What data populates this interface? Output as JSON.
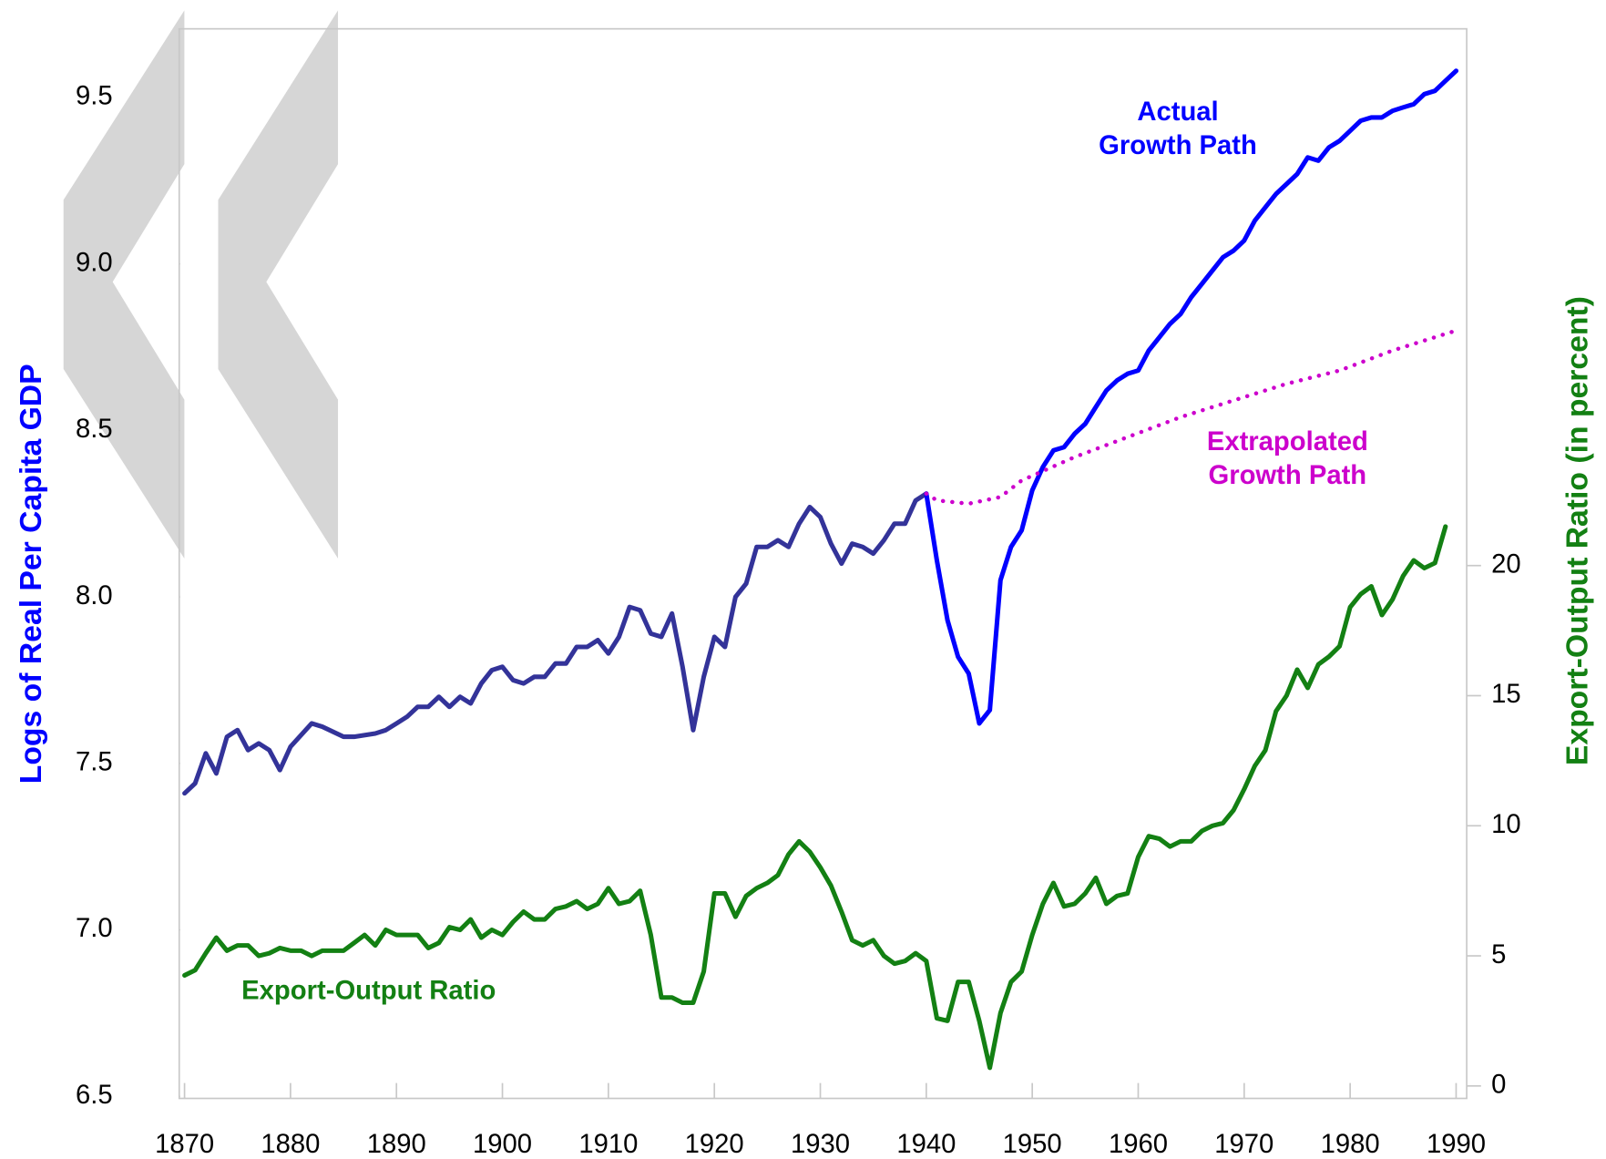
{
  "chart_data": {
    "type": "line",
    "xlim": [
      1869.5,
      1991
    ],
    "xticks": [
      1870,
      1880,
      1890,
      1900,
      1910,
      1920,
      1930,
      1940,
      1950,
      1960,
      1970,
      1980,
      1990
    ],
    "ylim": [
      6.5,
      9.7
    ],
    "yticks": [
      6.5,
      {
        "value": 7,
        "label": "7.0"
      },
      7.5,
      {
        "value": 8,
        "label": "8.0"
      },
      8.5,
      {
        "value": 9,
        "label": "9.0"
      },
      9.5
    ],
    "y2lim": [
      -0.4,
      40.55
    ],
    "y2ticks": [
      0,
      5,
      10,
      15,
      20
    ],
    "ylabel": "Logs of Real Per Capita GDP",
    "y2label": "Export-Output Ratio (in percent)",
    "series": [
      {
        "color": "#333399",
        "x": [
          1870,
          1871,
          1872,
          1873,
          1874,
          1875,
          1876,
          1877,
          1878,
          1879,
          1880,
          1882,
          1883,
          1885,
          1886,
          1888,
          1889,
          1890,
          1891,
          1892,
          1893,
          1894,
          1895,
          1896,
          1897,
          1898,
          1899,
          1900,
          1901,
          1902,
          1903,
          1904,
          1905,
          1906,
          1907,
          1908,
          1909,
          1910,
          1911,
          1912,
          1913,
          1914,
          1915,
          1916,
          1917,
          1918,
          1919,
          1920,
          1921,
          1922,
          1923,
          1924,
          1925,
          1926,
          1927,
          1928,
          1929,
          1930,
          1931,
          1932,
          1933,
          1934,
          1935,
          1936,
          1937,
          1938,
          1939,
          1940
        ],
        "values": [
          7.41,
          7.44,
          7.53,
          7.47,
          7.58,
          7.6,
          7.54,
          7.56,
          7.54,
          7.48,
          7.55,
          7.62,
          7.61,
          7.58,
          7.58,
          7.59,
          7.6,
          7.62,
          7.64,
          7.67,
          7.67,
          7.7,
          7.67,
          7.7,
          7.68,
          7.74,
          7.78,
          7.79,
          7.75,
          7.74,
          7.76,
          7.76,
          7.8,
          7.8,
          7.85,
          7.85,
          7.87,
          7.83,
          7.88,
          7.97,
          7.96,
          7.89,
          7.88,
          7.95,
          7.79,
          7.6,
          7.76,
          7.88,
          7.85,
          8.0,
          8.04,
          8.15,
          8.15,
          8.17,
          8.15,
          8.22,
          8.27,
          8.24,
          8.16,
          8.1,
          8.16,
          8.15,
          8.13,
          8.17,
          8.22,
          8.22,
          8.29,
          8.31
        ]
      },
      {
        "name": "Actual Growth Path",
        "color": "#0000ff",
        "x": [
          1940,
          1941,
          1942,
          1943,
          1944,
          1945,
          1946,
          1947,
          1948,
          1949,
          1950,
          1951,
          1952,
          1953,
          1954,
          1955,
          1956,
          1957,
          1958,
          1959,
          1960,
          1961,
          1962,
          1963,
          1964,
          1965,
          1966,
          1967,
          1968,
          1969,
          1970,
          1971,
          1972,
          1973,
          1974,
          1975,
          1976,
          1977,
          1978,
          1979,
          1980,
          1981,
          1982,
          1983,
          1984,
          1985,
          1986,
          1987,
          1988,
          1989,
          1990
        ],
        "values": [
          8.31,
          8.11,
          7.93,
          7.82,
          7.77,
          7.62,
          7.66,
          8.05,
          8.15,
          8.2,
          8.32,
          8.39,
          8.44,
          8.45,
          8.49,
          8.52,
          8.57,
          8.62,
          8.65,
          8.67,
          8.68,
          8.74,
          8.78,
          8.82,
          8.85,
          8.9,
          8.94,
          8.98,
          9.02,
          9.04,
          9.07,
          9.13,
          9.17,
          9.21,
          9.24,
          9.27,
          9.32,
          9.31,
          9.35,
          9.37,
          9.4,
          9.43,
          9.44,
          9.44,
          9.46,
          9.47,
          9.48,
          9.51,
          9.52,
          9.55,
          9.58
        ]
      },
      {
        "name": "Extrapolated Growth Path",
        "color": "#cc00cc",
        "style": "dotted",
        "x": [
          1940,
          1941,
          1944,
          1947,
          1949,
          1954,
          1959,
          1964,
          1969,
          1974,
          1979,
          1984,
          1990
        ],
        "values": [
          8.31,
          8.29,
          8.28,
          8.3,
          8.35,
          8.42,
          8.48,
          8.54,
          8.59,
          8.64,
          8.68,
          8.74,
          8.8
        ]
      },
      {
        "name": "Export-Output Ratio",
        "color": "#138013",
        "axis": "y2",
        "x": [
          1870,
          1871,
          1872,
          1873,
          1874,
          1875,
          1876,
          1877,
          1878,
          1879,
          1880,
          1881,
          1882,
          1883,
          1884,
          1885,
          1886,
          1887,
          1888,
          1889,
          1890,
          1891,
          1892,
          1893,
          1894,
          1895,
          1896,
          1897,
          1898,
          1899,
          1900,
          1901,
          1902,
          1903,
          1904,
          1905,
          1906,
          1907,
          1908,
          1909,
          1910,
          1911,
          1912,
          1913,
          1914,
          1915,
          1916,
          1917,
          1918,
          1919,
          1920,
          1921,
          1922,
          1923,
          1924,
          1925,
          1926,
          1927,
          1928,
          1929,
          1930,
          1931,
          1932,
          1933,
          1934,
          1935,
          1936,
          1937,
          1938,
          1939,
          1940,
          1941,
          1942,
          1943,
          1944,
          1945,
          1946,
          1947,
          1948,
          1949,
          1950,
          1951,
          1952,
          1953,
          1954,
          1955,
          1956,
          1957,
          1958,
          1959,
          1960,
          1961,
          1962,
          1963,
          1964,
          1965,
          1966,
          1967,
          1968,
          1969,
          1970,
          1971,
          1972,
          1973,
          1974,
          1975,
          1976,
          1977,
          1978,
          1979,
          1980,
          1981,
          1982,
          1983,
          1984,
          1985,
          1986,
          1987,
          1988,
          1989
        ],
        "values": [
          4.25,
          4.45,
          5.1,
          5.7,
          5.2,
          5.4,
          5.4,
          5.0,
          5.1,
          5.3,
          5.2,
          5.2,
          5.0,
          5.2,
          5.2,
          5.2,
          5.5,
          5.8,
          5.4,
          6.0,
          5.8,
          5.8,
          5.8,
          5.3,
          5.5,
          6.1,
          6.0,
          6.4,
          5.7,
          6.0,
          5.8,
          6.3,
          6.7,
          6.4,
          6.4,
          6.8,
          6.9,
          7.1,
          6.8,
          7.0,
          7.6,
          7.0,
          7.1,
          7.5,
          5.8,
          3.4,
          3.4,
          3.2,
          3.2,
          4.4,
          7.4,
          7.4,
          6.5,
          7.3,
          7.6,
          7.8,
          8.1,
          8.9,
          9.4,
          9.0,
          8.4,
          7.7,
          6.7,
          5.6,
          5.4,
          5.6,
          5.0,
          4.7,
          4.8,
          5.1,
          4.8,
          2.6,
          2.5,
          4.0,
          4.0,
          2.5,
          0.7,
          2.8,
          4.0,
          4.4,
          5.8,
          7.0,
          7.8,
          6.9,
          7.0,
          7.4,
          8.0,
          7.0,
          7.3,
          7.4,
          8.8,
          9.6,
          9.5,
          9.2,
          9.4,
          9.4,
          9.8,
          10.0,
          10.1,
          10.6,
          11.4,
          12.3,
          12.9,
          14.4,
          15.0,
          16.0,
          15.3,
          16.2,
          16.5,
          16.9,
          18.4,
          18.9,
          19.2,
          18.1,
          18.7,
          19.6,
          20.2,
          19.9,
          20.1,
          21.5
        ]
      }
    ]
  }
}
